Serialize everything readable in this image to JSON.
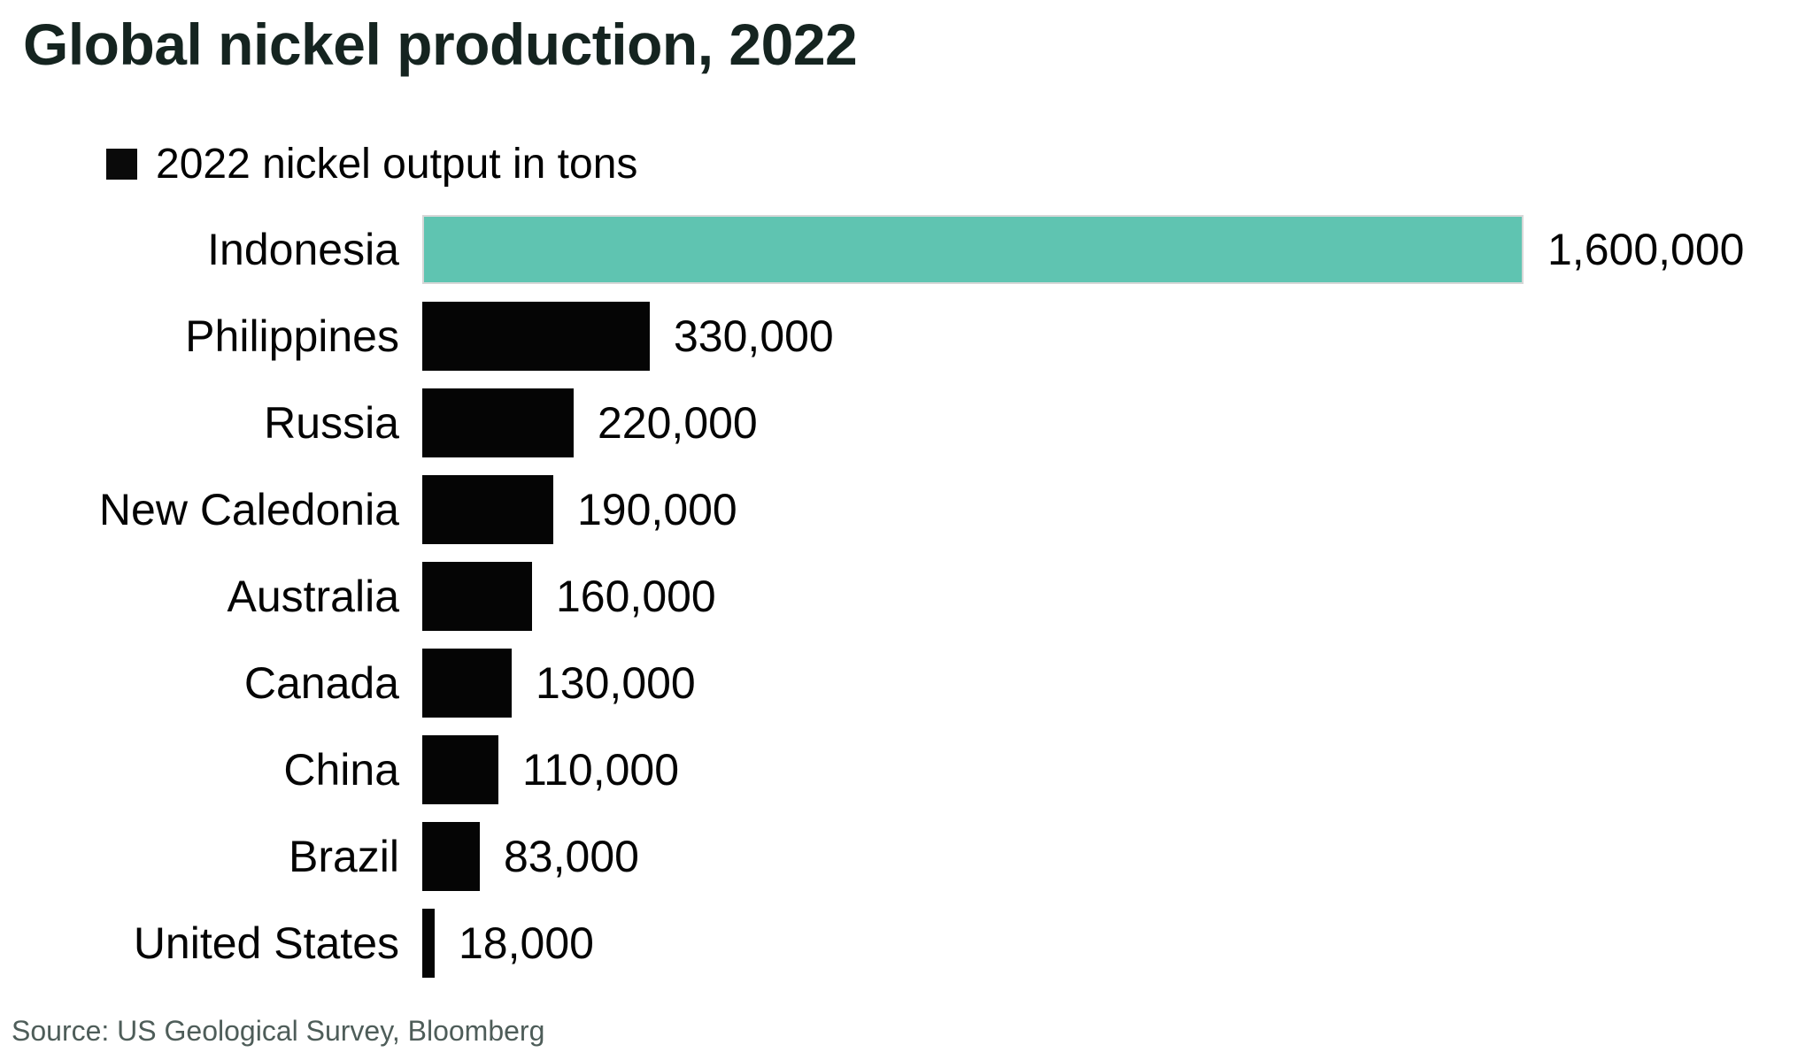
{
  "title": "Global nickel production, 2022",
  "legend": {
    "label": "2022 nickel output in tons",
    "swatch_color": "#0a0a0a"
  },
  "source": "Source: US Geological Survey, Bloomberg",
  "colors": {
    "highlight_bar": "#5fc4b1",
    "default_bar": "#050505",
    "title_text": "#152420",
    "source_text": "#4e5d59"
  },
  "chart_data": {
    "type": "bar",
    "orientation": "horizontal",
    "title": "Global nickel production, 2022",
    "legend_label": "2022 nickel output in tons",
    "categories": [
      "Indonesia",
      "Philippines",
      "Russia",
      "New Caledonia",
      "Australia",
      "Canada",
      "China",
      "Brazil",
      "United States"
    ],
    "values": [
      1600000,
      330000,
      220000,
      190000,
      160000,
      130000,
      110000,
      83000,
      18000
    ],
    "value_labels": [
      "1,600,000",
      "330,000",
      "220,000",
      "190,000",
      "160,000",
      "130,000",
      "110,000",
      "83,000",
      "18,000"
    ],
    "xlim": [
      0,
      1600000
    ],
    "highlighted_category": "Indonesia",
    "unit": "tons",
    "grid": false,
    "legend_position": "top-left",
    "source": "Source: US Geological Survey, Bloomberg"
  }
}
